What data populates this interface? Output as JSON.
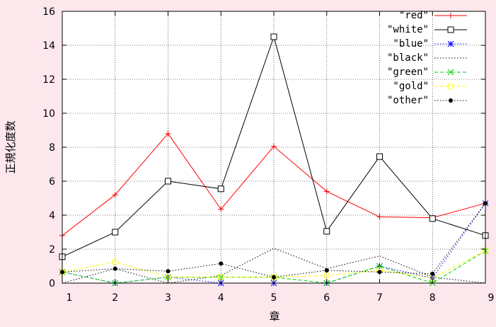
{
  "chart_data": {
    "type": "line",
    "title": "",
    "xlabel": "章",
    "ylabel": "正規化度数",
    "x": [
      1,
      2,
      3,
      4,
      5,
      6,
      7,
      8,
      9
    ],
    "xlim": [
      1,
      9
    ],
    "ylim": [
      0,
      16
    ],
    "xticks": [
      1,
      2,
      3,
      4,
      5,
      6,
      7,
      8,
      9
    ],
    "yticks": [
      0,
      2,
      4,
      6,
      8,
      10,
      12,
      14,
      16
    ],
    "grid": true,
    "legend_position": "top-right",
    "series": [
      {
        "name": "\"red\"",
        "color": "#ff0000",
        "dash": "solid",
        "marker": "plus",
        "values": [
          2.8,
          5.2,
          8.8,
          4.35,
          8.05,
          5.4,
          3.9,
          3.85,
          4.7
        ]
      },
      {
        "name": "\"white\"",
        "color": "#000000",
        "dash": "solid",
        "marker": "square",
        "values": [
          1.55,
          3.0,
          6.0,
          5.55,
          14.5,
          3.05,
          7.45,
          3.8,
          2.8
        ]
      },
      {
        "name": "\"blue\"",
        "color": "#0000ff",
        "dash": "dotted",
        "marker": "star",
        "values": [
          0.65,
          0.0,
          0.35,
          0.0,
          0.0,
          0.0,
          1.0,
          0.3,
          4.7
        ]
      },
      {
        "name": "\"black\"",
        "color": "#000000",
        "dash": "dotted",
        "marker": "none",
        "values": [
          0.0,
          0.85,
          0.0,
          0.45,
          2.05,
          0.85,
          1.6,
          0.35,
          0.0
        ]
      },
      {
        "name": "\"green\"",
        "color": "#00cc00",
        "dash": "dashed",
        "marker": "x",
        "values": [
          0.65,
          0.0,
          0.35,
          0.35,
          0.35,
          0.0,
          1.0,
          0.0,
          1.9
        ]
      },
      {
        "name": "\"gold\"",
        "color": "#ffff00",
        "dash": "dashed",
        "marker": "circle-open",
        "values": [
          0.65,
          1.25,
          0.35,
          0.35,
          0.35,
          0.45,
          0.75,
          0.3,
          1.9
        ]
      },
      {
        "name": "\"other\"",
        "color": "#000000",
        "dash": "dotted",
        "marker": "circle-filled",
        "values": [
          0.65,
          0.85,
          0.7,
          1.15,
          0.35,
          0.75,
          0.65,
          0.55,
          4.7
        ]
      }
    ]
  }
}
